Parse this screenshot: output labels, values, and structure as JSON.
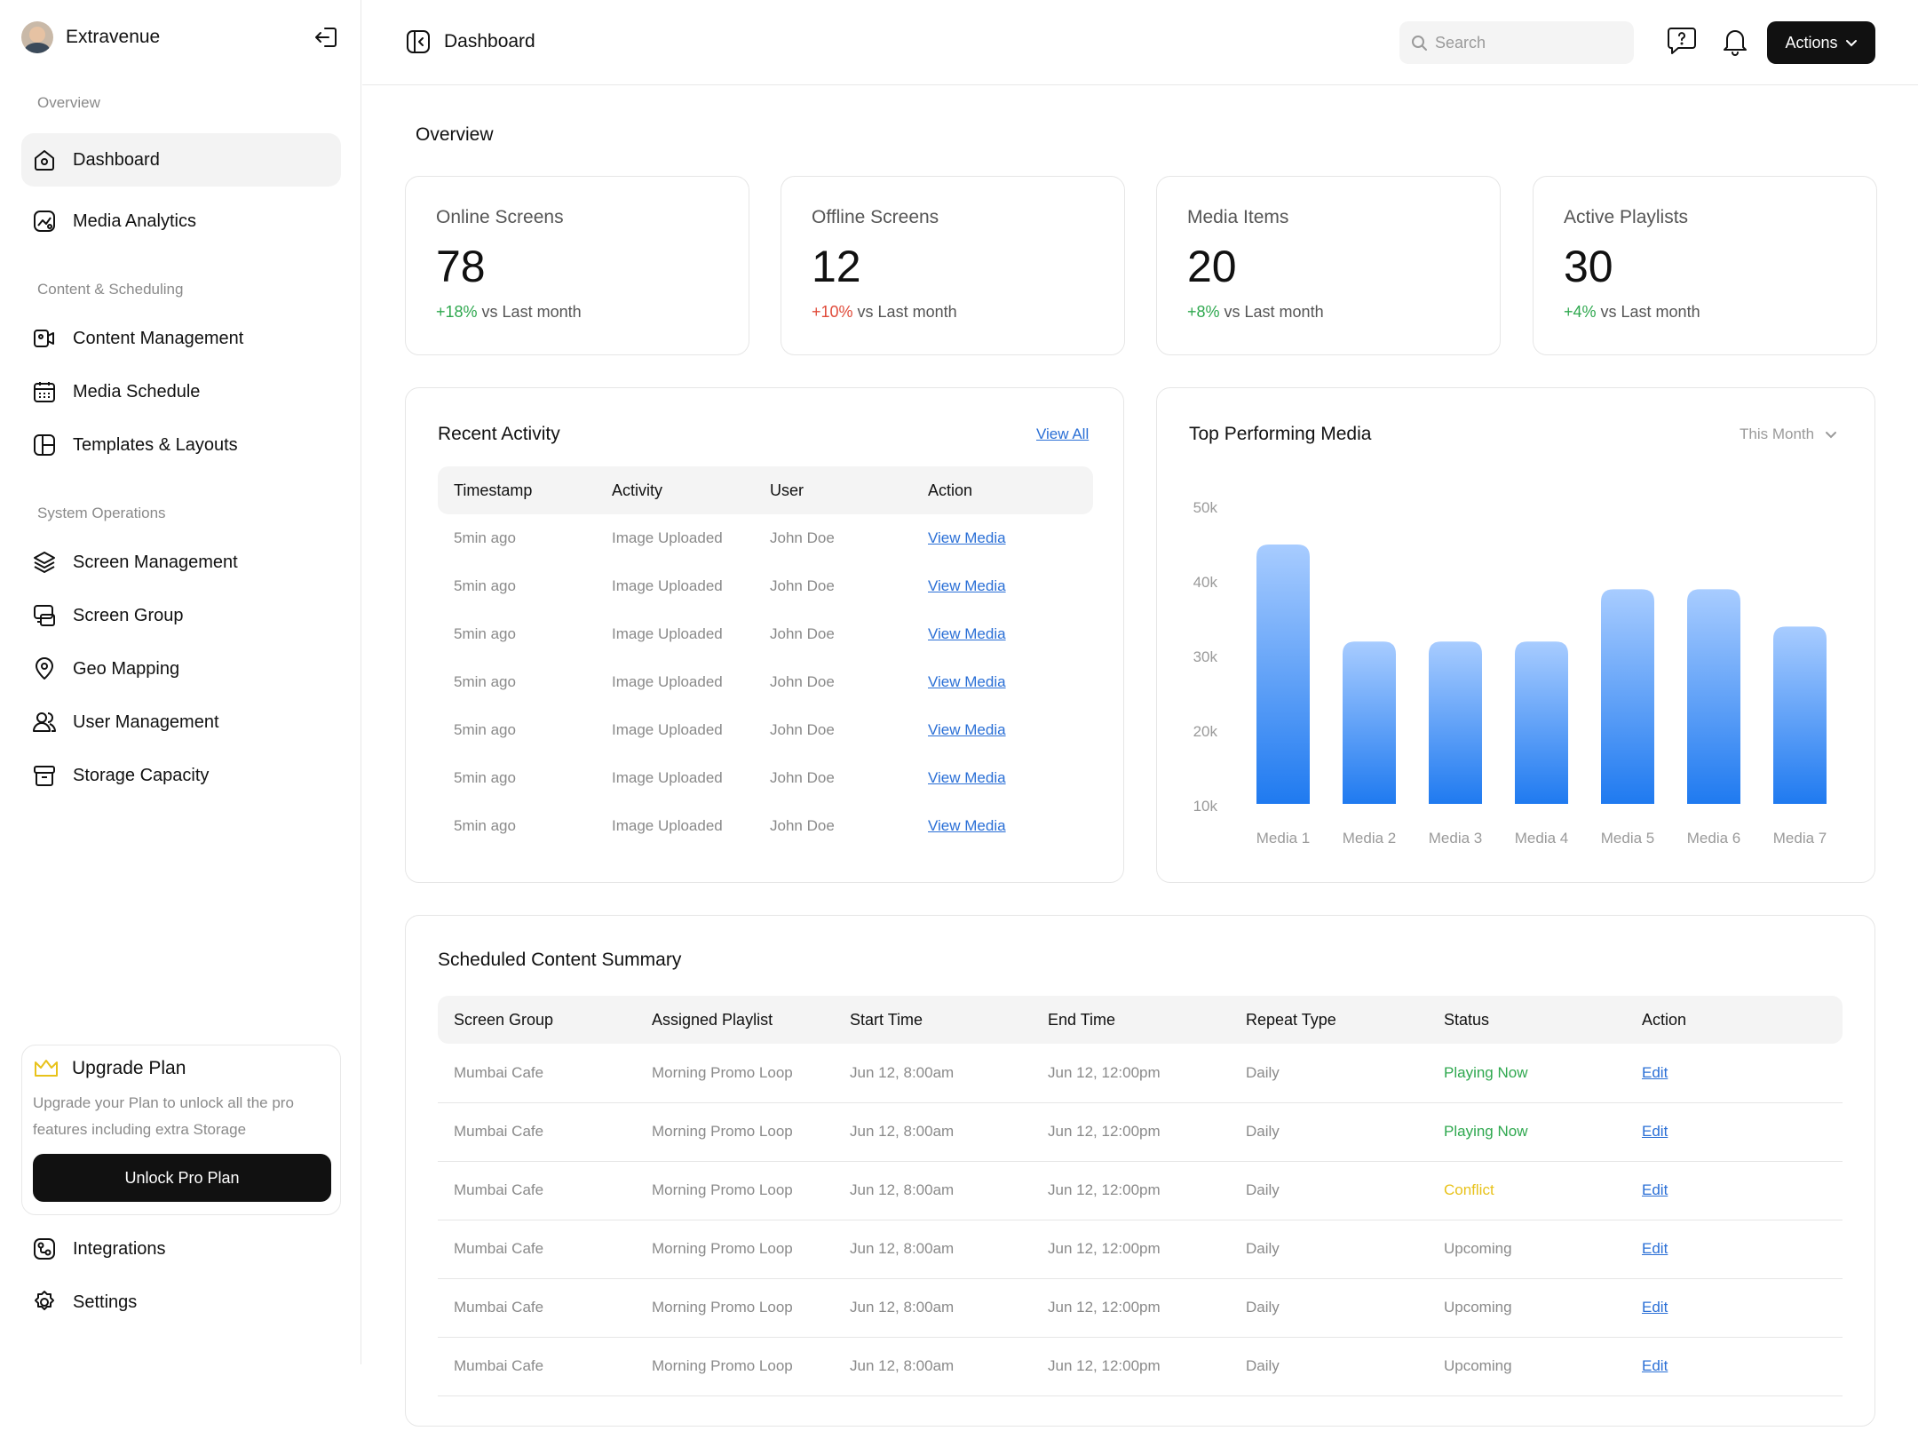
{
  "app": {
    "name": "Extravenue"
  },
  "sidebar": {
    "sections": [
      "Overview",
      "Content & Scheduling",
      "System Operations"
    ],
    "items": [
      {
        "label": "Dashboard",
        "icon": "home-icon"
      },
      {
        "label": "Media Analytics",
        "icon": "analytics-icon"
      },
      {
        "label": "Content Management",
        "icon": "content-icon"
      },
      {
        "label": "Media Schedule",
        "icon": "calendar-icon"
      },
      {
        "label": "Templates & Layouts",
        "icon": "layout-icon"
      },
      {
        "label": "Screen Management",
        "icon": "layers-icon"
      },
      {
        "label": "Screen Group",
        "icon": "screen-group-icon"
      },
      {
        "label": "Geo Mapping",
        "icon": "location-pin-icon"
      },
      {
        "label": "User Management",
        "icon": "users-icon"
      },
      {
        "label": "Storage Capacity",
        "icon": "archive-icon"
      }
    ],
    "upgrade": {
      "title": "Upgrade Plan",
      "description": "Upgrade your Plan to unlock all the pro features including extra Storage",
      "button": "Unlock Pro Plan"
    },
    "bottom_items": [
      {
        "label": "Integrations",
        "icon": "integrations-icon"
      },
      {
        "label": "Settings",
        "icon": "gear-icon"
      }
    ]
  },
  "header": {
    "breadcrumb": "Dashboard",
    "search_placeholder": "Search",
    "actions_label": "Actions"
  },
  "main": {
    "title": "Overview",
    "stats": [
      {
        "label": "Online Screens",
        "value": "78",
        "delta": "+18%",
        "delta_color": "green",
        "suffix": " vs Last month"
      },
      {
        "label": "Offline Screens",
        "value": "12",
        "delta": "+10%",
        "delta_color": "red",
        "suffix": " vs Last month"
      },
      {
        "label": "Media Items",
        "value": "20",
        "delta": "+8%",
        "delta_color": "green",
        "suffix": " vs Last month"
      },
      {
        "label": "Active Playlists",
        "value": "30",
        "delta": "+4%",
        "delta_color": "green",
        "suffix": " vs Last month"
      }
    ],
    "recent_activity": {
      "title": "Recent Activity",
      "view_all": "View All",
      "columns": [
        "Timestamp",
        "Activity",
        "User",
        "Action"
      ],
      "rows": [
        [
          "5min ago",
          "Image Uploaded",
          "John Doe",
          "View Media"
        ],
        [
          "5min ago",
          "Image Uploaded",
          "John Doe",
          "View Media"
        ],
        [
          "5min ago",
          "Image Uploaded",
          "John Doe",
          "View Media"
        ],
        [
          "5min ago",
          "Image Uploaded",
          "John Doe",
          "View Media"
        ],
        [
          "5min ago",
          "Image Uploaded",
          "John Doe",
          "View Media"
        ],
        [
          "5min ago",
          "Image Uploaded",
          "John Doe",
          "View Media"
        ],
        [
          "5min ago",
          "Image Uploaded",
          "John Doe",
          "View Media"
        ]
      ]
    },
    "top_media": {
      "title": "Top Performing Media",
      "period": "This Month"
    },
    "scheduled": {
      "title": "Scheduled Content Summary",
      "columns": [
        "Screen Group",
        "Assigned Playlist",
        "Start Time",
        "End Time",
        "Repeat Type",
        "Status",
        "Action"
      ],
      "rows": [
        {
          "group": "Mumbai Cafe",
          "playlist": "Morning Promo Loop",
          "start": "Jun 12, 8:00am",
          "end": "Jun 12, 12:00pm",
          "repeat": "Daily",
          "status": "Playing Now",
          "status_type": "playing",
          "action": "Edit"
        },
        {
          "group": "Mumbai Cafe",
          "playlist": "Morning Promo Loop",
          "start": "Jun 12, 8:00am",
          "end": "Jun 12, 12:00pm",
          "repeat": "Daily",
          "status": "Playing Now",
          "status_type": "playing",
          "action": "Edit"
        },
        {
          "group": "Mumbai Cafe",
          "playlist": "Morning Promo Loop",
          "start": "Jun 12, 8:00am",
          "end": "Jun 12, 12:00pm",
          "repeat": "Daily",
          "status": "Conflict",
          "status_type": "conflict",
          "action": "Edit"
        },
        {
          "group": "Mumbai Cafe",
          "playlist": "Morning Promo Loop",
          "start": "Jun 12, 8:00am",
          "end": "Jun 12, 12:00pm",
          "repeat": "Daily",
          "status": "Upcoming",
          "status_type": "upcoming",
          "action": "Edit"
        },
        {
          "group": "Mumbai Cafe",
          "playlist": "Morning Promo Loop",
          "start": "Jun 12, 8:00am",
          "end": "Jun 12, 12:00pm",
          "repeat": "Daily",
          "status": "Upcoming",
          "status_type": "upcoming",
          "action": "Edit"
        },
        {
          "group": "Mumbai Cafe",
          "playlist": "Morning Promo Loop",
          "start": "Jun 12, 8:00am",
          "end": "Jun 12, 12:00pm",
          "repeat": "Daily",
          "status": "Upcoming",
          "status_type": "upcoming",
          "action": "Edit"
        }
      ]
    }
  },
  "colors": {
    "accent": "#111111",
    "link": "#2a6fd6",
    "green": "#2fa84f",
    "red": "#e04b3a",
    "yellow": "#e8c21a",
    "bar_top": "#a8ccff",
    "bar_bottom": "#1f7af0"
  },
  "chart_data": {
    "type": "bar",
    "title": "Top Performing Media",
    "categories": [
      "Media 1",
      "Media 2",
      "Media 3",
      "Media 4",
      "Media 5",
      "Media 6",
      "Media 7"
    ],
    "values": [
      45000,
      32000,
      32000,
      32000,
      39000,
      39000,
      34000
    ],
    "y_ticks": [
      "50k",
      "40k",
      "30k",
      "20k",
      "10k"
    ],
    "ylim": [
      10000,
      50000
    ],
    "xlabel": "",
    "ylabel": "",
    "grid": false
  }
}
